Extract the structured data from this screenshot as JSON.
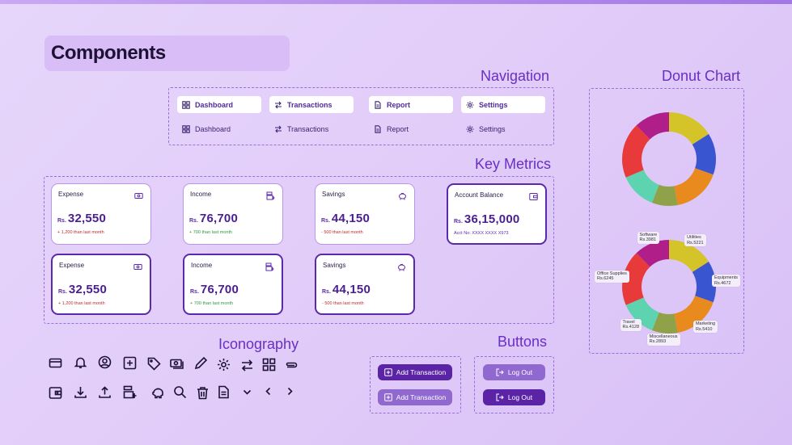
{
  "page": {
    "title": "Components"
  },
  "sections": {
    "navigation": "Navigation",
    "key_metrics": "Key Metrics",
    "iconography": "Iconography",
    "buttons": "Buttons",
    "donut": "Donut Chart"
  },
  "navigation": {
    "active": [
      {
        "label": "Dashboard",
        "icon": "grid-icon"
      },
      {
        "label": "Transactions",
        "icon": "swap-icon"
      },
      {
        "label": "Report",
        "icon": "document-icon"
      },
      {
        "label": "Settings",
        "icon": "gear-icon"
      }
    ],
    "default": [
      {
        "label": "Dashboard",
        "icon": "grid-icon"
      },
      {
        "label": "Transactions",
        "icon": "swap-icon"
      },
      {
        "label": "Report",
        "icon": "document-icon"
      },
      {
        "label": "Settings",
        "icon": "gear-icon"
      }
    ]
  },
  "metrics": {
    "row1": [
      {
        "label": "Expense",
        "currency": "Rs.",
        "value": "32,550",
        "sub": "+ 1,200 than last month",
        "tone": "red",
        "icon": "money-icon"
      },
      {
        "label": "Income",
        "currency": "Rs.",
        "value": "76,700",
        "sub": "+ 700 than last month",
        "tone": "green",
        "icon": "cash-register-icon"
      },
      {
        "label": "Savings",
        "currency": "Rs.",
        "value": "44,150",
        "sub": "- 500 than last month",
        "tone": "red",
        "icon": "piggy-bank-icon"
      },
      {
        "label": "Account Balance",
        "currency": "Rs.",
        "value": "36,15,000",
        "sub": "Acct No: XXXX XXXX X973",
        "tone": "purple",
        "icon": "wallet-icon"
      }
    ],
    "row2": [
      {
        "label": "Expense",
        "currency": "Rs.",
        "value": "32,550",
        "sub": "+ 1,200 than last month",
        "tone": "red",
        "icon": "money-icon"
      },
      {
        "label": "Income",
        "currency": "Rs.",
        "value": "76,700",
        "sub": "+ 700 than last month",
        "tone": "green",
        "icon": "cash-register-icon"
      },
      {
        "label": "Savings",
        "currency": "Rs.",
        "value": "44,150",
        "sub": "- 500 than last month",
        "tone": "red",
        "icon": "piggy-bank-icon"
      }
    ]
  },
  "icons": [
    "credit-card-icon",
    "bell-icon",
    "user-circle-icon",
    "plus-square-icon",
    "tag-icon",
    "money-icon",
    "pencil-icon",
    "gear-icon",
    "swap-icon",
    "grid-icon",
    "paperclip-icon",
    "wallet-icon",
    "download-icon",
    "upload-icon",
    "cash-register-icon",
    "piggy-bank-icon",
    "search-icon",
    "trash-icon",
    "document-icon",
    "chevron-down-icon",
    "chevron-left-icon",
    "chevron-right-icon"
  ],
  "buttons": {
    "add_transaction": "Add Transaction",
    "log_out": "Log Out"
  },
  "colors": {
    "accent": "#5b23a6",
    "accent_light": "#9068d0",
    "heading": "#6a2fc4"
  },
  "chart_data": [
    {
      "type": "pie",
      "title": "",
      "donut": true,
      "categories": [
        "Utilities",
        "Equipments",
        "Marketing",
        "Miscellaneous",
        "Travel",
        "Office Supplies",
        "Software"
      ],
      "values": [
        5221,
        4672,
        5410,
        2893,
        4128,
        6245,
        3981
      ],
      "colors": [
        "#d4c42a",
        "#3a55d0",
        "#e88a1e",
        "#8fa24a",
        "#5dd3b0",
        "#e83a3a",
        "#b01e8a"
      ],
      "labels": false
    },
    {
      "type": "pie",
      "title": "",
      "donut": true,
      "categories": [
        "Utilities",
        "Equipments",
        "Marketing",
        "Miscellaneous",
        "Travel",
        "Office Supplies",
        "Software"
      ],
      "values": [
        5221,
        4672,
        5410,
        2893,
        4128,
        6245,
        3981
      ],
      "colors": [
        "#d4c42a",
        "#3a55d0",
        "#e88a1e",
        "#8fa24a",
        "#5dd3b0",
        "#e83a3a",
        "#b01e8a"
      ],
      "labels": true,
      "label_texts": [
        {
          "name": "Utilities",
          "value": "Rs.5221"
        },
        {
          "name": "Equipments",
          "value": "Rs.4672"
        },
        {
          "name": "Marketing",
          "value": "Rs.5410"
        },
        {
          "name": "Miscellaneous",
          "value": "Rs.2893"
        },
        {
          "name": "Travel",
          "value": "Rs.4128"
        },
        {
          "name": "Office Supplies",
          "value": "Rs.6245"
        },
        {
          "name": "Software",
          "value": "Rs.3981"
        }
      ]
    }
  ]
}
